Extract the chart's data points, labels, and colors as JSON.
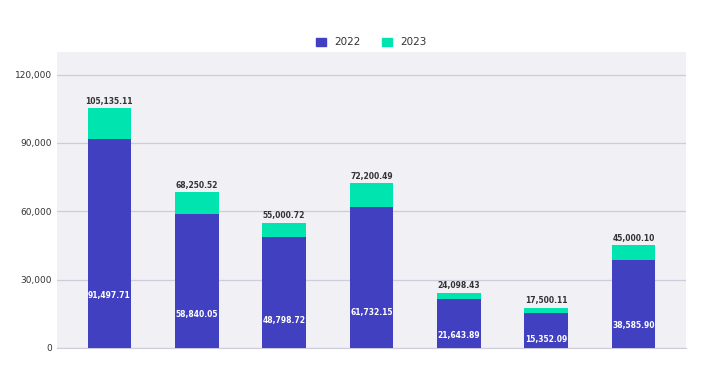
{
  "n_categories": 7,
  "values_2022": [
    91497.71,
    58840.05,
    48798.72,
    61732.15,
    21643.89,
    15352.09,
    38585.9
  ],
  "values_2023": [
    13637.4,
    9410.47,
    6202.0,
    10468.34,
    2454.54,
    2148.02,
    6414.2
  ],
  "color_2022": "#4040C0",
  "color_2023": "#00E5B0",
  "bar_labels_2022": [
    "91,497.71",
    "58,840.05",
    "48,798.72",
    "61,732.15",
    "21,643.89",
    "15,352.09",
    "38,585.90"
  ],
  "bar_labels_2023": [
    "105,135.11",
    "68,250.52",
    "55,000.72",
    "72,200.49",
    "24,098.43",
    "17,500.11",
    "45,000.10"
  ],
  "legend_2022": "2022",
  "legend_2023": "2023",
  "background_color": "#ffffff",
  "plot_bg_color": "#f0f0f5",
  "grid_color": "#ccccdd",
  "text_color_light": "#ffffff",
  "text_color_dark": "#333333",
  "bar_width": 0.5,
  "ylim_max": 130000,
  "ytick_step": 30000,
  "label_fontsize": 5.5,
  "legend_fontsize": 7.5,
  "ytick_fontsize": 6.5
}
